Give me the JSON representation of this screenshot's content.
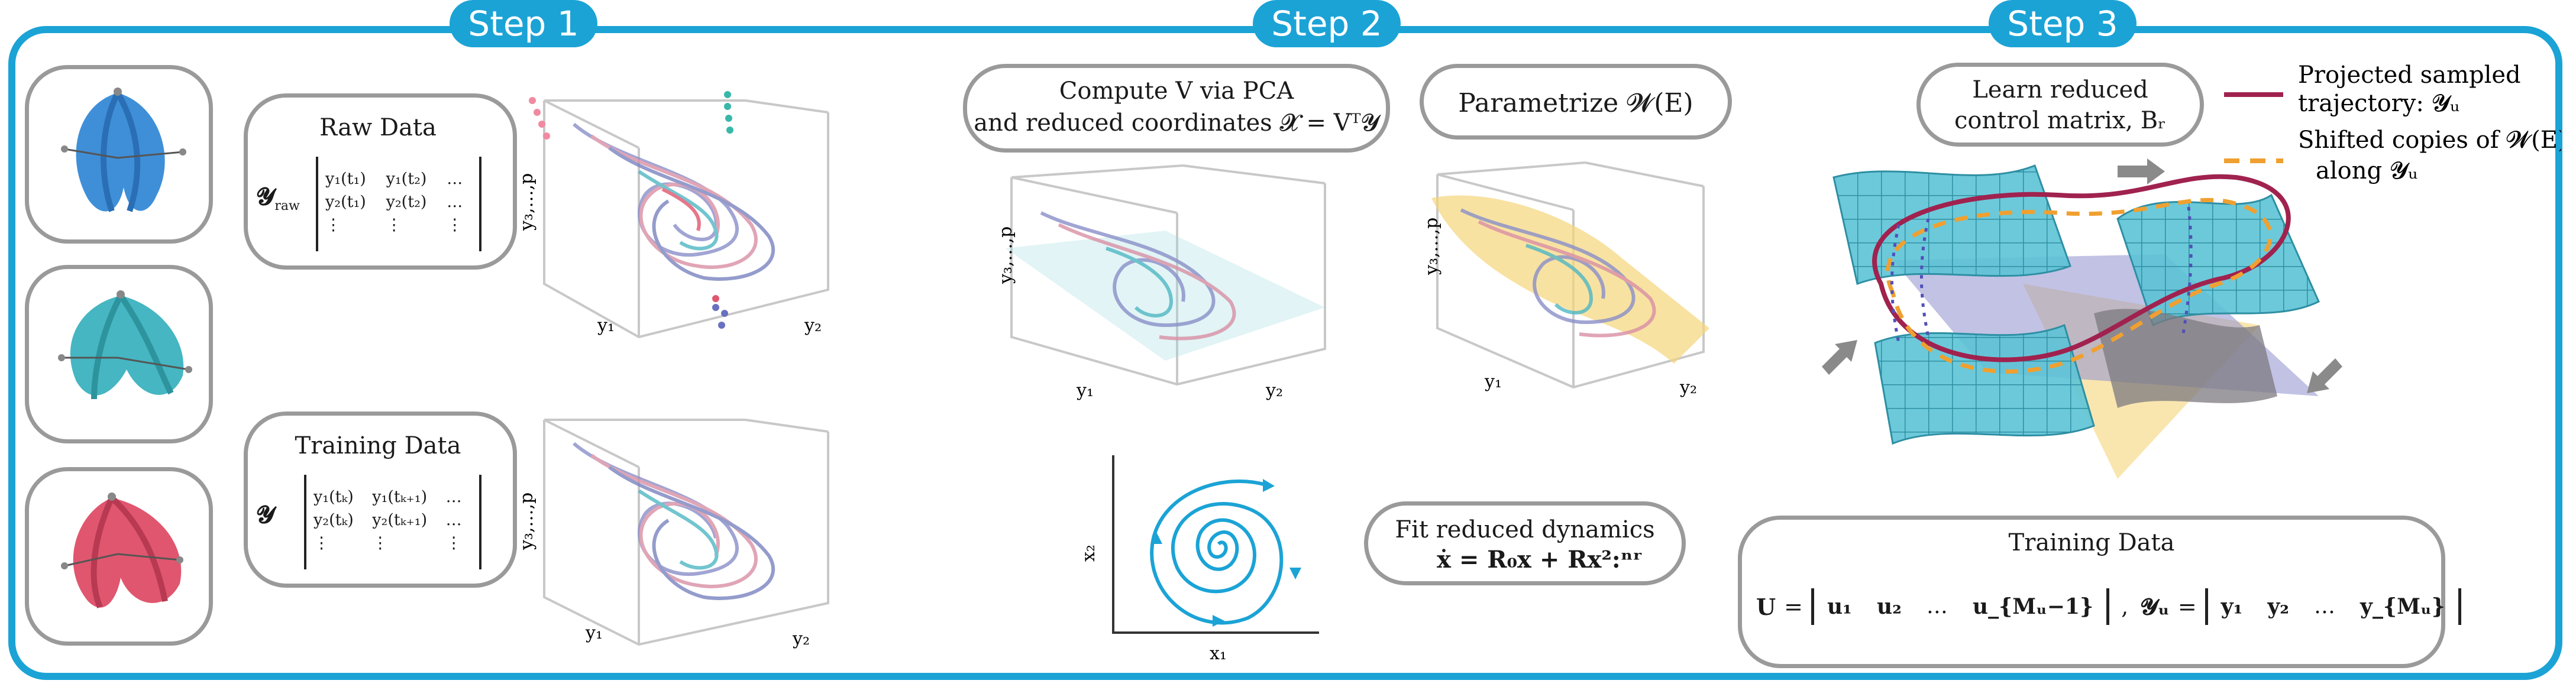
{
  "steps": [
    "Step 1",
    "Step 2",
    "Step 3"
  ],
  "step1": {
    "raw_title": "Raw Data",
    "raw_var": "𝓨",
    "raw_var_sub": "raw",
    "raw_matrix": [
      [
        "y₁(t₁)",
        "y₁(t₂)",
        "…"
      ],
      [
        "y₂(t₁)",
        "y₂(t₂)",
        "…"
      ],
      [
        "⋮",
        "⋮",
        "⋮"
      ]
    ],
    "train_title": "Training Data",
    "train_var": "𝓨",
    "train_matrix": [
      [
        "y₁(tₖ)",
        "y₁(tₖ₊₁)",
        "…"
      ],
      [
        "y₂(tₖ)",
        "y₂(tₖ₊₁)",
        "…"
      ],
      [
        "⋮",
        "⋮",
        "⋮"
      ]
    ],
    "axis_y1": "y₁",
    "axis_y2": "y₂",
    "axis_y3p": "y₃,…,p"
  },
  "step2": {
    "pca_line1": "Compute V via PCA",
    "pca_line2": "and reduced coordinates 𝓧 = Vᵀ𝓨",
    "param_label": "Parametrize 𝓦(E)",
    "fit_line1": "Fit reduced dynamics",
    "fit_line2": "ẋ = R₀x + Rx²:ⁿʳ",
    "axis_y1": "y₁",
    "axis_y2": "y₂",
    "axis_y3p": "y₃,…,p",
    "axis_x1": "x₁",
    "axis_x2": "x₂"
  },
  "step3": {
    "learn_line1": "Learn reduced",
    "learn_line2": "control matrix, Bᵣ",
    "legend_projected_line1": "Projected sampled",
    "legend_projected_line2": "trajectory: 𝓨ᵤ",
    "legend_shifted_line1": "Shifted copies of 𝓦(E)",
    "legend_shifted_line2": "along 𝓨ᵤ",
    "train_title": "Training Data",
    "u_var": "U",
    "u_cols": [
      "u₁",
      "u₂",
      "…",
      "u_{Mᵤ−1}"
    ],
    "y_var": "𝓨ᵤ",
    "y_cols": [
      "y₁",
      "y₂",
      "…",
      "y_{Mᵤ}"
    ]
  },
  "colors": {
    "accent": "#1ba3d6",
    "robot_blue": "#3f8fd8",
    "robot_teal": "#45b6c2",
    "robot_red": "#e0566e",
    "trajectory_crimson": "#a0224e",
    "shifted_orange": "#f0a030",
    "manifold_yellow": "#f5d57a",
    "surface_cyan": "#5cc4d6"
  }
}
